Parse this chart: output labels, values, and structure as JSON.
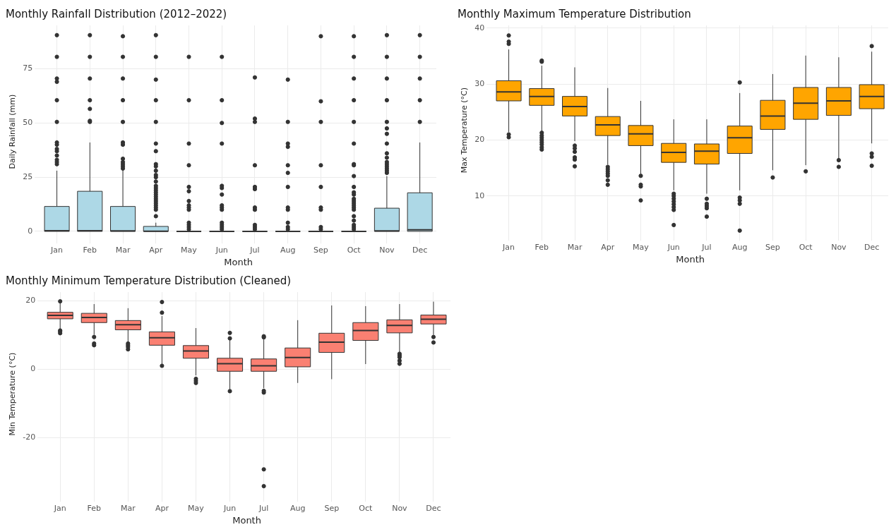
{
  "chart_data": [
    {
      "type": "box",
      "title": "Monthly Rainfall Distribution (2012–2022)",
      "xlabel": "Month",
      "ylabel": "Daily Rainfall (mm)",
      "categories": [
        "Jan",
        "Feb",
        "Mar",
        "Apr",
        "May",
        "Jun",
        "Jul",
        "Aug",
        "Sep",
        "Oct",
        "Nov",
        "Dec"
      ],
      "ylim": [
        -3,
        95
      ],
      "yticks": [
        0,
        25,
        50,
        75
      ],
      "grid": true,
      "series": [
        {
          "color": "#add8e6",
          "boxes": [
            {
              "low": 0,
              "q1": 0,
              "median": 0.3,
              "q3": 11.5,
              "high": 28,
              "outliers": [
                31,
                32,
                33,
                35,
                37,
                38,
                40,
                41,
                50.5,
                60.5,
                69,
                70.5,
                80.5,
                90.5
              ]
            },
            {
              "low": 0,
              "q1": 0,
              "median": 0.3,
              "q3": 18.5,
              "high": 41,
              "outliers": [
                50.5,
                51,
                56.5,
                60.5,
                70.5,
                80.5,
                90.5
              ]
            },
            {
              "low": 0,
              "q1": 0,
              "median": 0.2,
              "q3": 11.5,
              "high": 28.5,
              "outliers": [
                29,
                30,
                31,
                32,
                33.5,
                40,
                41,
                50.5,
                60.5,
                70.5,
                80.5,
                90
              ]
            },
            {
              "low": 0,
              "q1": 0,
              "median": 0.1,
              "q3": 2.3,
              "high": 4,
              "outliers": [
                7,
                10,
                11,
                12,
                13,
                14,
                15,
                16,
                17,
                18,
                19,
                20,
                21,
                23,
                25,
                26,
                28,
                30,
                31,
                37,
                40.5,
                50.5,
                60.5,
                70,
                80.5,
                90.5
              ]
            },
            {
              "low": 0,
              "q1": 0,
              "median": 0,
              "q3": 0,
              "high": 0,
              "outliers": [
                1,
                2,
                3,
                4,
                10,
                11,
                12,
                14,
                18.5,
                20.5,
                30.5,
                40.5,
                60.5,
                80.5
              ]
            },
            {
              "low": 0,
              "q1": 0,
              "median": 0,
              "q3": 0,
              "high": 0,
              "outliers": [
                1,
                2,
                3,
                4,
                10,
                11,
                12,
                17,
                20,
                21,
                40.5,
                50,
                60.5,
                80.5
              ]
            },
            {
              "low": 0,
              "q1": 0,
              "median": 0,
              "q3": 0,
              "high": 0,
              "outliers": [
                1,
                2,
                3,
                10,
                11,
                19.5,
                20.5,
                30.5,
                50.5,
                52,
                71
              ]
            },
            {
              "low": 0,
              "q1": 0,
              "median": 0,
              "q3": 0,
              "high": 0,
              "outliers": [
                1,
                2,
                4,
                10,
                11,
                20.5,
                27,
                30.5,
                39,
                40.5,
                50.5,
                70
              ]
            },
            {
              "low": 0,
              "q1": 0,
              "median": 0,
              "q3": 0,
              "high": 0,
              "outliers": [
                1,
                2,
                10,
                11,
                20.5,
                30.5,
                50.5,
                60,
                90
              ]
            },
            {
              "low": 0,
              "q1": 0,
              "median": 0,
              "q3": 0,
              "high": 0,
              "outliers": [
                1,
                2,
                3,
                5,
                7,
                10,
                11,
                12,
                13,
                14,
                15,
                17,
                18,
                20.5,
                25.5,
                30.5,
                31,
                40.5,
                50.5,
                60.5,
                70.5,
                80.5,
                90
              ]
            },
            {
              "low": 0,
              "q1": 0,
              "median": 0.2,
              "q3": 10.7,
              "high": 25.5,
              "outliers": [
                27,
                28,
                29,
                30,
                31,
                32,
                34,
                36,
                40.5,
                45,
                47.5,
                50.5,
                60.5,
                70.5,
                80.5,
                90.5
              ]
            },
            {
              "low": 0,
              "q1": 0,
              "median": 0.7,
              "q3": 17.8,
              "high": 41,
              "outliers": [
                50.5,
                60.5,
                70.5,
                80.5,
                90.5
              ]
            }
          ]
        }
      ]
    },
    {
      "type": "box",
      "title": "Monthly Maximum Temperature Distribution",
      "xlabel": "Month",
      "ylabel": "Max Temperature (°C)",
      "categories": [
        "Jan",
        "Feb",
        "Mar",
        "Apr",
        "May",
        "Jun",
        "Jul",
        "Aug",
        "Sep",
        "Oct",
        "Nov",
        "Dec"
      ],
      "ylim": [
        3,
        40.5
      ],
      "yticks": [
        10,
        20,
        30,
        40
      ],
      "grid": true,
      "series": [
        {
          "color": "#ffa500",
          "boxes": [
            {
              "low": 21.4,
              "q1": 27,
              "median": 28.6,
              "q3": 30.6,
              "high": 36.2,
              "outliers": [
                20.5,
                21,
                37.2,
                37.6,
                38.7
              ]
            },
            {
              "low": 21.5,
              "q1": 26.2,
              "median": 27.8,
              "q3": 29.2,
              "high": 33.3,
              "outliers": [
                18.3,
                18.7,
                19.2,
                19.6,
                20,
                20.4,
                20.8,
                21.3,
                34,
                34.2
              ]
            },
            {
              "low": 19.8,
              "q1": 24.3,
              "median": 26,
              "q3": 27.8,
              "high": 33,
              "outliers": [
                15.3,
                16.5,
                16.9,
                17.9,
                18.5,
                19
              ]
            },
            {
              "low": 15.6,
              "q1": 20.8,
              "median": 22.7,
              "q3": 24.2,
              "high": 29.3,
              "outliers": [
                12,
                12.8,
                13.6,
                14,
                14.4,
                14.8,
                15.2
              ]
            },
            {
              "low": 14,
              "q1": 19,
              "median": 21.1,
              "q3": 22.6,
              "high": 27,
              "outliers": [
                9.2,
                11.7,
                12,
                13.6
              ]
            },
            {
              "low": 11,
              "q1": 16,
              "median": 17.8,
              "q3": 19.4,
              "high": 23.7,
              "outliers": [
                4.8,
                7.5,
                8,
                8.5,
                9,
                9.5,
                10,
                10.4
              ]
            },
            {
              "low": 10.4,
              "q1": 15.7,
              "median": 18,
              "q3": 19.3,
              "high": 23.7,
              "outliers": [
                6.3,
                7.8,
                8.2,
                8.6,
                9.5
              ]
            },
            {
              "low": 11,
              "q1": 17.6,
              "median": 20.4,
              "q3": 22.5,
              "high": 28.4,
              "outliers": [
                3.8,
                8.6,
                9.2,
                9.7,
                30.3
              ]
            },
            {
              "low": 14.6,
              "q1": 21.9,
              "median": 24.3,
              "q3": 27.1,
              "high": 31.8,
              "outliers": [
                13.3
              ]
            },
            {
              "low": 15.5,
              "q1": 23.7,
              "median": 26.6,
              "q3": 29.4,
              "high": 35.1,
              "outliers": [
                14.4
              ]
            },
            {
              "low": 16.5,
              "q1": 24.4,
              "median": 27,
              "q3": 29.4,
              "high": 34.8,
              "outliers": [
                15.2,
                16.4
              ]
            },
            {
              "low": 19.4,
              "q1": 25.6,
              "median": 27.8,
              "q3": 29.9,
              "high": 35.8,
              "outliers": [
                15.4,
                17,
                17.6,
                36.8
              ]
            }
          ]
        }
      ]
    },
    {
      "type": "box",
      "title": "Monthly Minimum Temperature Distribution (Cleaned)",
      "xlabel": "Month",
      "ylabel": "Min Temperature (°C)",
      "categories": [
        "Jan",
        "Feb",
        "Mar",
        "Apr",
        "May",
        "Jun",
        "Jul",
        "Aug",
        "Sep",
        "Oct",
        "Nov",
        "Dec"
      ],
      "ylim": [
        -37,
        22.5
      ],
      "yticks": [
        -20,
        0,
        20
      ],
      "grid": true,
      "series": [
        {
          "color": "#fa8072",
          "boxes": [
            {
              "low": 11.8,
              "q1": 14.7,
              "median": 15.7,
              "q3": 16.6,
              "high": 19.5,
              "outliers": [
                10.5,
                11,
                11.3,
                19.8
              ]
            },
            {
              "low": 10,
              "q1": 13.6,
              "median": 15.1,
              "q3": 16.3,
              "high": 19,
              "outliers": [
                7,
                7.5,
                9.4
              ]
            },
            {
              "low": 8,
              "q1": 11.5,
              "median": 13,
              "q3": 14.2,
              "high": 17.8,
              "outliers": [
                5.8,
                6.5,
                7,
                7.5
              ]
            },
            {
              "low": 1.5,
              "q1": 7,
              "median": 9.2,
              "q3": 10.9,
              "high": 15.5,
              "outliers": [
                1,
                16.5,
                19.6
              ]
            },
            {
              "low": -1.8,
              "q1": 3.2,
              "median": 5.3,
              "q3": 6.9,
              "high": 12,
              "outliers": [
                -2.8,
                -3.4,
                -4
              ]
            },
            {
              "low": -6.2,
              "q1": -0.6,
              "median": 1.6,
              "q3": 3.2,
              "high": 8.7,
              "outliers": [
                -6.4,
                9,
                10.6
              ]
            },
            {
              "low": -5.5,
              "q1": -0.6,
              "median": 1,
              "q3": 3,
              "high": 8.7,
              "outliers": [
                -34.1,
                -29.2,
                -6.8,
                -6.3,
                9.3,
                9.6
              ]
            },
            {
              "low": -4,
              "q1": 0.7,
              "median": 3.4,
              "q3": 6.2,
              "high": 14.3
            },
            {
              "low": -2.9,
              "q1": 4.9,
              "median": 7.9,
              "q3": 10.5,
              "high": 18.6
            },
            {
              "low": 1.5,
              "q1": 8.4,
              "median": 11.3,
              "q3": 13.6,
              "high": 18.4
            },
            {
              "low": 5,
              "q1": 10.6,
              "median": 12.8,
              "q3": 14.4,
              "high": 19,
              "outliers": [
                1.6,
                2.5,
                3.5,
                4,
                4.5
              ]
            },
            {
              "low": 10,
              "q1": 13.2,
              "median": 14.6,
              "q3": 15.8,
              "high": 19.7,
              "outliers": [
                7.8,
                9.4
              ]
            }
          ]
        }
      ]
    }
  ]
}
